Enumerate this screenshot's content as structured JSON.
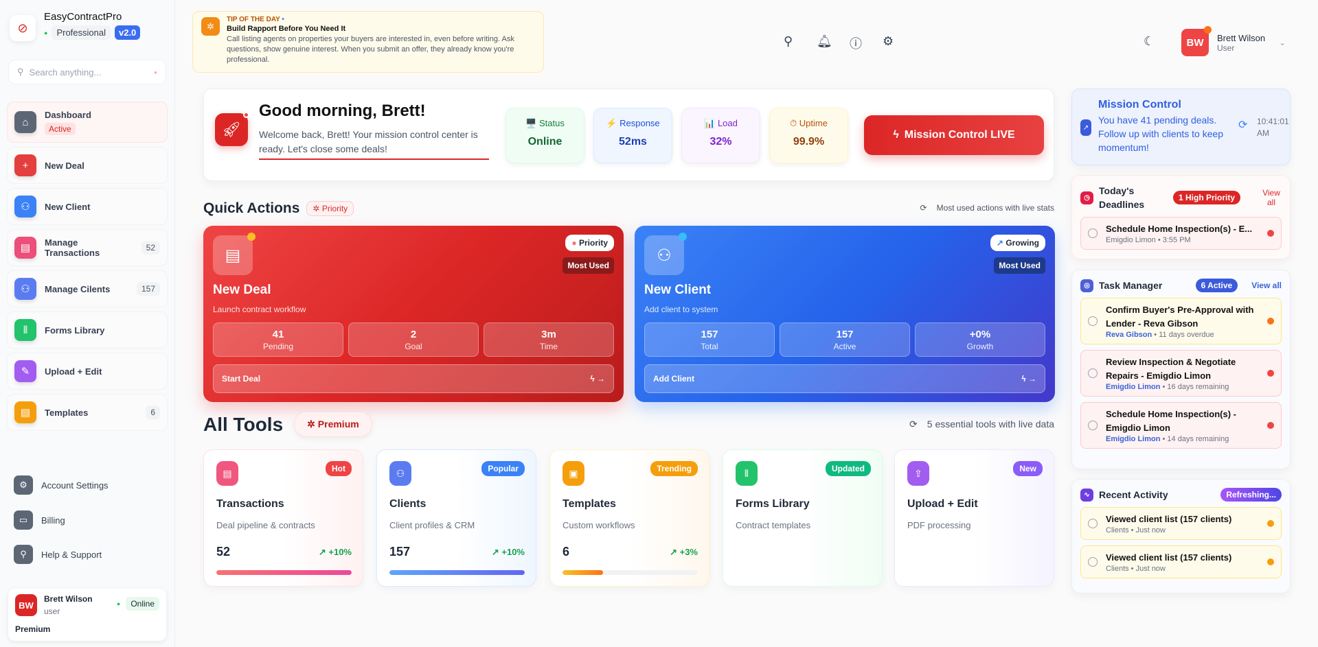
{
  "brand": {
    "name": "EasyContractPro",
    "plan": "Professional",
    "version": "v2.0"
  },
  "search": {
    "placeholder": "Search anything..."
  },
  "sidebar": {
    "items": [
      {
        "label": "Dashboard",
        "badge": "Active",
        "icon": "home-icon",
        "color": "#5d6675"
      },
      {
        "label": "New Deal",
        "icon": "plus-icon",
        "color": "#e53e3e"
      },
      {
        "label": "New Client",
        "icon": "user-plus-icon",
        "color": "#3b82f6"
      },
      {
        "label": "Manage Transactions",
        "count": "52",
        "icon": "file-icon",
        "color": "#ec4f7a"
      },
      {
        "label": "Manage Cilents",
        "count": "157",
        "icon": "users-icon",
        "color": "#5b7cf0"
      },
      {
        "label": "Forms Library",
        "icon": "library-icon",
        "color": "#22c36b"
      },
      {
        "label": "Upload + Edit",
        "icon": "pen-icon",
        "color": "#a35cf0"
      },
      {
        "label": "Templates",
        "count": "6",
        "icon": "file-icon",
        "color": "#f59e0b"
      }
    ],
    "bottom": [
      {
        "label": "Account Settings",
        "icon": "gear-icon"
      },
      {
        "label": "Billing",
        "icon": "card-icon"
      },
      {
        "label": "Help & Support",
        "icon": "search-icon"
      }
    ],
    "user": {
      "initials": "BW",
      "name": "Brett Wilson",
      "role": "user",
      "status": "Online",
      "tier": "Premium"
    }
  },
  "tip": {
    "kicker": "TIP OF THE DAY",
    "title": "Build Rapport Before You Need It",
    "body": "Call listing agents on properties your buyers are interested in, even before writing. Ask questions, show genuine interest. When you submit an offer, they already know you're professional."
  },
  "header": {
    "user": {
      "initials": "BW",
      "name": "Brett Wilson",
      "role": "User"
    }
  },
  "hero": {
    "greeting": "Good morning, Brett!",
    "message": "Welcome back, Brett! Your mission control center is ready. Let's close some deals!",
    "stats": [
      {
        "label": "Status",
        "value": "Online",
        "icon": "🖥️"
      },
      {
        "label": "Response",
        "value": "52ms",
        "icon": "⚡"
      },
      {
        "label": "Load",
        "value": "32%",
        "icon": "📊"
      },
      {
        "label": "Uptime",
        "value": "99.9%",
        "icon": "⏱"
      }
    ],
    "button": "Mission Control LIVE"
  },
  "quick": {
    "title": "Quick Actions",
    "tag": "Priority",
    "note": "Most used actions with live stats",
    "cards": [
      {
        "title": "New Deal",
        "sub": "Launch contract workflow",
        "badge": "Priority",
        "badge2": "Most Used",
        "stats": [
          {
            "v": "41",
            "l": "Pending"
          },
          {
            "v": "2",
            "l": "Goal"
          },
          {
            "v": "3m",
            "l": "Time"
          }
        ],
        "action": "Start Deal"
      },
      {
        "title": "New Client",
        "sub": "Add client to system",
        "badge": "Growing",
        "badge2": "Most Used",
        "stats": [
          {
            "v": "157",
            "l": "Total"
          },
          {
            "v": "157",
            "l": "Active"
          },
          {
            "v": "+0%",
            "l": "Growth"
          }
        ],
        "action": "Add Client"
      }
    ]
  },
  "tools": {
    "title": "All Tools",
    "tag": "Premium",
    "note": "5 essential tools with live data",
    "items": [
      {
        "name": "Transactions",
        "desc": "Deal pipeline & contracts",
        "badge": "Hot",
        "count": "52",
        "trend": "+10%",
        "progress": 100,
        "color": "#ef4444"
      },
      {
        "name": "Clients",
        "desc": "Client profiles & CRM",
        "badge": "Popular",
        "count": "157",
        "trend": "+10%",
        "progress": 100,
        "color": "#3b82f6"
      },
      {
        "name": "Templates",
        "desc": "Custom workflows",
        "badge": "Trending",
        "count": "6",
        "trend": "+3%",
        "progress": 30,
        "color": "#f59e0b"
      },
      {
        "name": "Forms Library",
        "desc": "Contract templates",
        "badge": "Updated",
        "color": "#10b981"
      },
      {
        "name": "Upload + Edit",
        "desc": "PDF processing",
        "badge": "New",
        "color": "#8b5cf6"
      }
    ]
  },
  "mission": {
    "title": "Mission Control",
    "message": "You have 41 pending deals. Follow up with clients to keep momentum!",
    "time": "10:41:01 AM"
  },
  "deadlines": {
    "title": "Today's Deadlines",
    "badge": "1 High Priority",
    "link": "View all",
    "items": [
      {
        "title": "Schedule Home Inspection(s) - E...",
        "who": "Emigdio Limon",
        "when": "3:55 PM"
      }
    ]
  },
  "tasks": {
    "title": "Task Manager",
    "badge": "6 Active",
    "link": "View all",
    "items": [
      {
        "title": "Confirm Buyer's Pre-Approval with Lender - Reva Gibson",
        "who": "Reva Gibson",
        "when": "11 days overdue"
      },
      {
        "title": "Review Inspection & Negotiate Repairs - Emigdio Limon",
        "who": "Emigdio Limon",
        "when": "16 days remaining"
      },
      {
        "title": "Schedule Home Inspection(s) - Emigdio Limon",
        "who": "Emigdio Limon",
        "when": "14 days remaining"
      }
    ]
  },
  "activity": {
    "title": "Recent Activity",
    "badge": "Refreshing...",
    "items": [
      {
        "title": "Viewed client list (157 clients)",
        "meta": "Clients • Just now"
      },
      {
        "title": "Viewed client list (157 clients)",
        "meta": "Clients • Just now"
      }
    ]
  }
}
